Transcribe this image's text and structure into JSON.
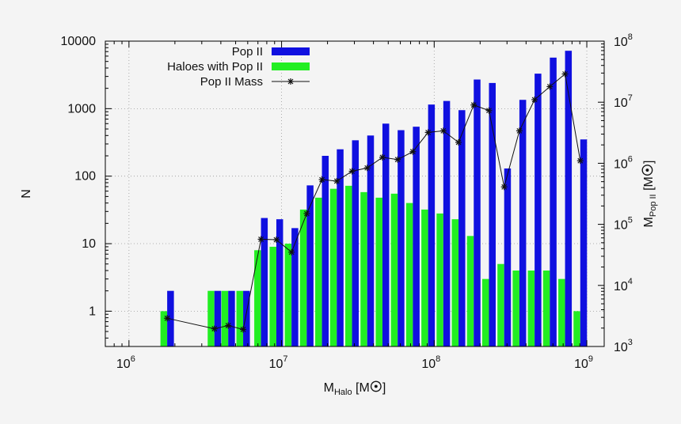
{
  "chart_data": {
    "type": "bar",
    "xscale": "log",
    "yscale": "log",
    "y2scale": "log",
    "xlim": [
      700000,
      1300000000
    ],
    "ylim": [
      0.3,
      10000
    ],
    "y2lim": [
      1000,
      100000000
    ],
    "grid": true,
    "legend_position": "top-left inside",
    "xlabel": "M",
    "xlabel_sub": "Halo",
    "xlabel_unit": " [M",
    "xlabel_tail": "]",
    "ylabel": "N",
    "y2label": "M",
    "y2label_sub": "Pop II",
    "y2label_unit": " [M",
    "y2label_tail": "]",
    "sun_symbol": "☉",
    "x_ticks": [
      {
        "base": "10",
        "exp": "6",
        "value": 1000000
      },
      {
        "base": "10",
        "exp": "7",
        "value": 10000000
      },
      {
        "base": "10",
        "exp": "8",
        "value": 100000000
      },
      {
        "base": "10",
        "exp": "9",
        "value": 1000000000
      }
    ],
    "y_ticks": [
      {
        "label": "1",
        "value": 1
      },
      {
        "label": "10",
        "value": 10
      },
      {
        "label": "100",
        "value": 100
      },
      {
        "label": "1000",
        "value": 1000
      },
      {
        "label": "10000",
        "value": 10000
      }
    ],
    "y2_ticks": [
      {
        "base": "10",
        "exp": "3",
        "value": 1000
      },
      {
        "base": "10",
        "exp": "4",
        "value": 10000
      },
      {
        "base": "10",
        "exp": "5",
        "value": 100000
      },
      {
        "base": "10",
        "exp": "6",
        "value": 1000000
      },
      {
        "base": "10",
        "exp": "7",
        "value": 10000000
      },
      {
        "base": "10",
        "exp": "8",
        "value": 100000000
      }
    ],
    "bins": [
      1780000,
      3630000,
      4470000,
      5600000,
      7330000,
      9240000,
      11620000,
      14620000,
      18390000,
      23010000,
      28950000,
      36410000,
      45810000,
      57630000,
      72500000,
      91220000,
      114760000,
      144370000,
      181630000,
      228510000,
      287490000,
      361680000,
      455030000,
      572470000,
      720210000,
      906090000
    ],
    "series": [
      {
        "name": "Pop II",
        "color": "#1010e0",
        "axis": "y",
        "kind": "bar",
        "values": [
          2,
          2,
          2,
          2,
          24,
          23,
          17,
          73,
          200,
          250,
          340,
          400,
          600,
          480,
          540,
          1150,
          1300,
          950,
          2700,
          2400,
          130,
          1350,
          3300,
          5700,
          7200,
          350
        ]
      },
      {
        "name": "Haloes with Pop II",
        "color": "#22ee22",
        "axis": "y",
        "kind": "bar",
        "values": [
          1,
          2,
          2,
          2,
          8,
          9,
          10,
          32,
          48,
          65,
          72,
          58,
          48,
          55,
          40,
          32,
          28,
          23,
          13,
          3,
          5,
          4,
          4,
          4,
          3,
          1
        ]
      },
      {
        "name": "Pop II Mass",
        "color": "#111111",
        "axis": "y2",
        "kind": "line-points",
        "x": [
          1780000,
          3630000,
          4470000,
          5600000,
          7330000,
          9240000,
          11620000,
          14620000,
          18390000,
          23010000,
          28950000,
          36410000,
          45810000,
          57630000,
          72500000,
          91220000,
          114760000,
          144370000,
          181630000,
          228510000,
          287490000,
          361680000,
          455030000,
          572470000,
          720210000,
          906090000
        ],
        "values": [
          2900,
          1950,
          2200,
          1900,
          57000,
          56000,
          35000,
          150000,
          540000,
          510000,
          740000,
          840000,
          1250000,
          1150000,
          1550000,
          3200000,
          3400000,
          2200000,
          9000000,
          7300000,
          410000,
          3400000,
          11000000,
          18000000,
          29000000,
          1100000
        ]
      }
    ]
  }
}
